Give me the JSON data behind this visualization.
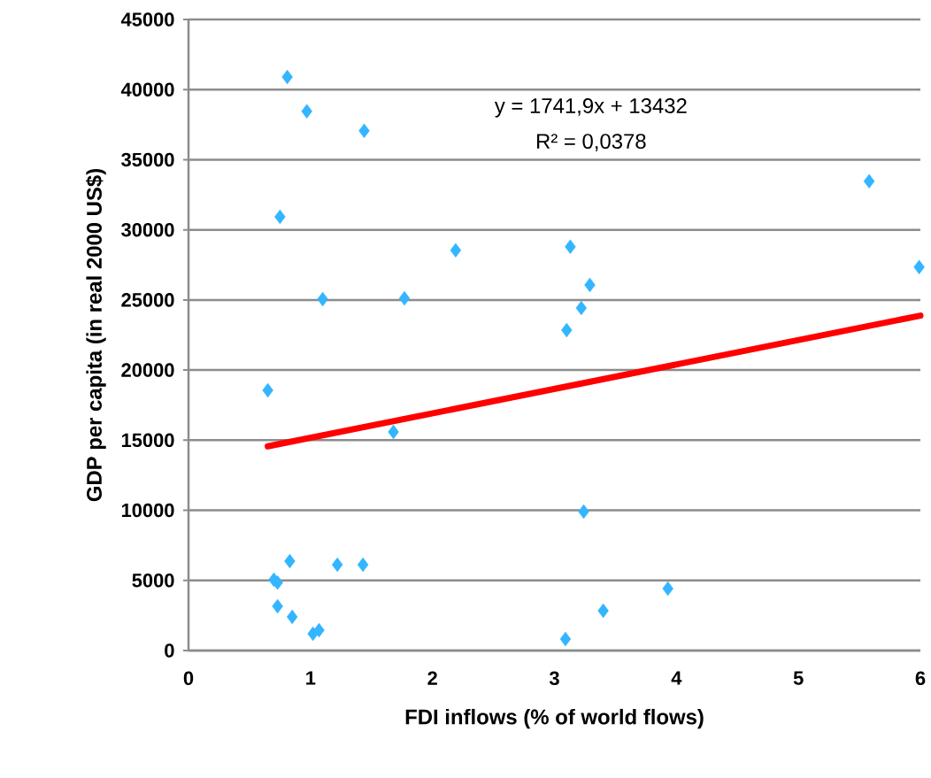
{
  "chart_data": {
    "type": "scatter",
    "xlabel": "FDI inflows (% of world flows)",
    "ylabel": "GDP per capita (in real 2000 US$)",
    "xlim": [
      0,
      6
    ],
    "xticks": [
      0,
      1,
      2,
      3,
      4,
      5,
      6
    ],
    "ylim": [
      0,
      45000
    ],
    "yticks": [
      0,
      5000,
      10000,
      15000,
      20000,
      25000,
      30000,
      35000,
      40000,
      45000
    ],
    "grid": "y",
    "marker": "diamond",
    "annotations": [
      "y = 1741,9x + 13432",
      "R² = 0,0378"
    ],
    "series": [
      {
        "color": "#33b5ff",
        "x": [
          0.81,
          0.97,
          1.44,
          0.75,
          2.19,
          3.13,
          3.29,
          3.22,
          3.1,
          1.1,
          1.77,
          0.65,
          1.68,
          5.58,
          5.99,
          3.24,
          3.93,
          3.4,
          3.09,
          0.83,
          1.22,
          1.43,
          0.7,
          0.73,
          0.73,
          0.85,
          1.02,
          1.07
        ],
        "values": [
          40900,
          38450,
          37060,
          30930,
          28540,
          28790,
          26070,
          24430,
          22850,
          25060,
          25120,
          18560,
          15590,
          33460,
          27340,
          9910,
          4420,
          2840,
          820,
          6380,
          6120,
          6120,
          5050,
          4850,
          3160,
          2400,
          1200,
          1450
        ]
      },
      {
        "type": "line",
        "color": "#ff0000",
        "marker": "none",
        "line_style": "solid",
        "x": [
          0.65,
          6
        ],
        "values": [
          14560,
          23880
        ]
      }
    ]
  }
}
